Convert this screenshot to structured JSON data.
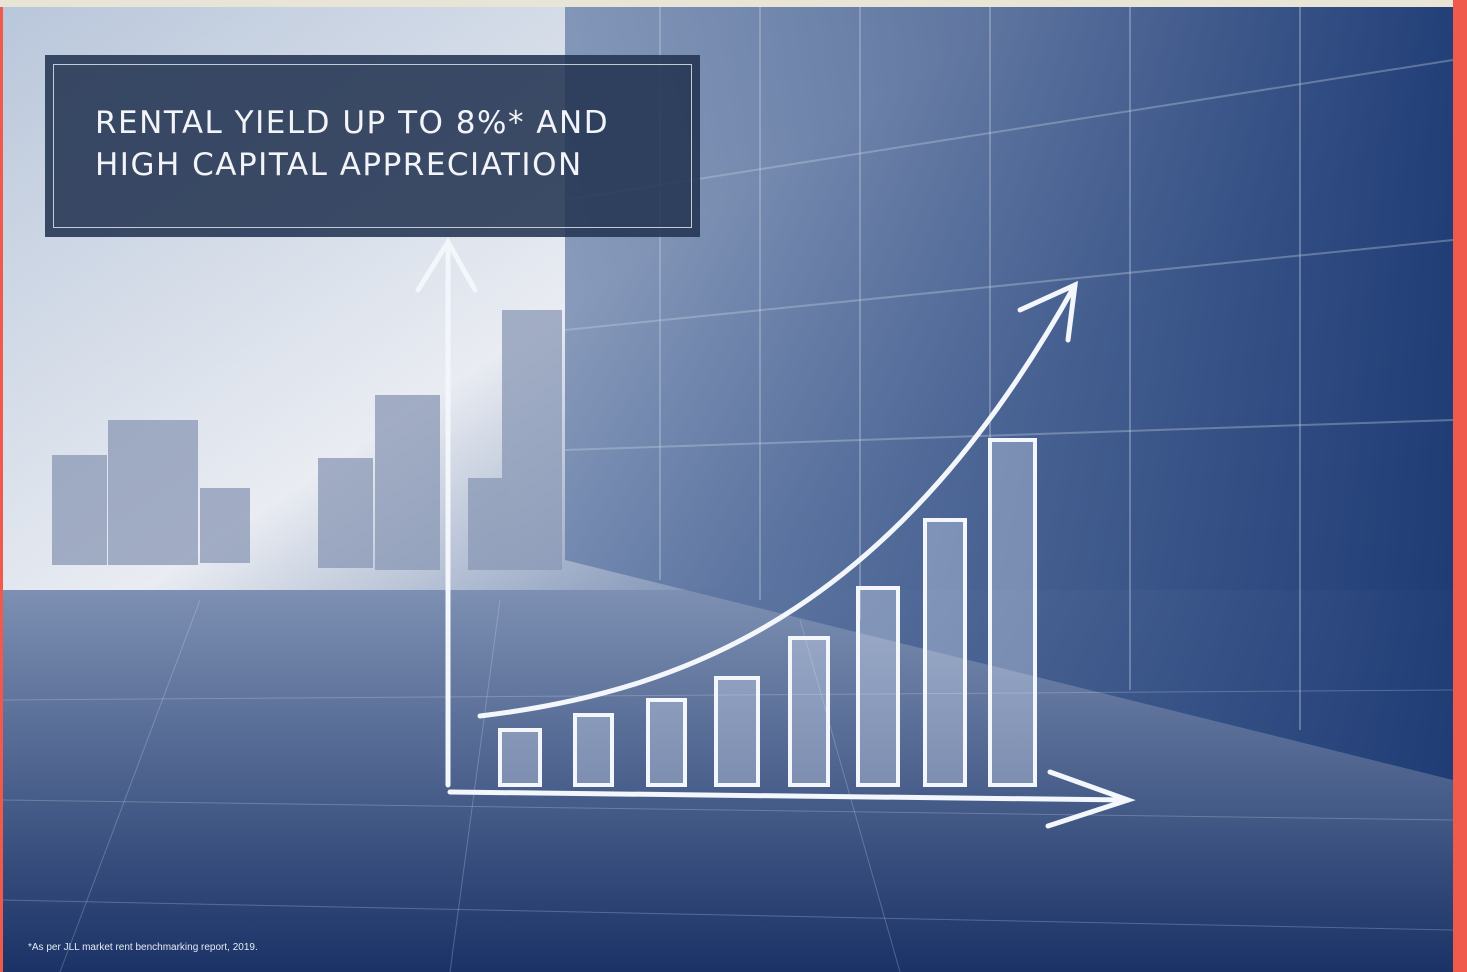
{
  "headline": {
    "lines": [
      "RENTAL YIELD UP TO 8%* AND",
      "HIGH CAPITAL APPRECIATION"
    ]
  },
  "footnote": "*As per JLL market rent benchmarking report, 2019."
}
